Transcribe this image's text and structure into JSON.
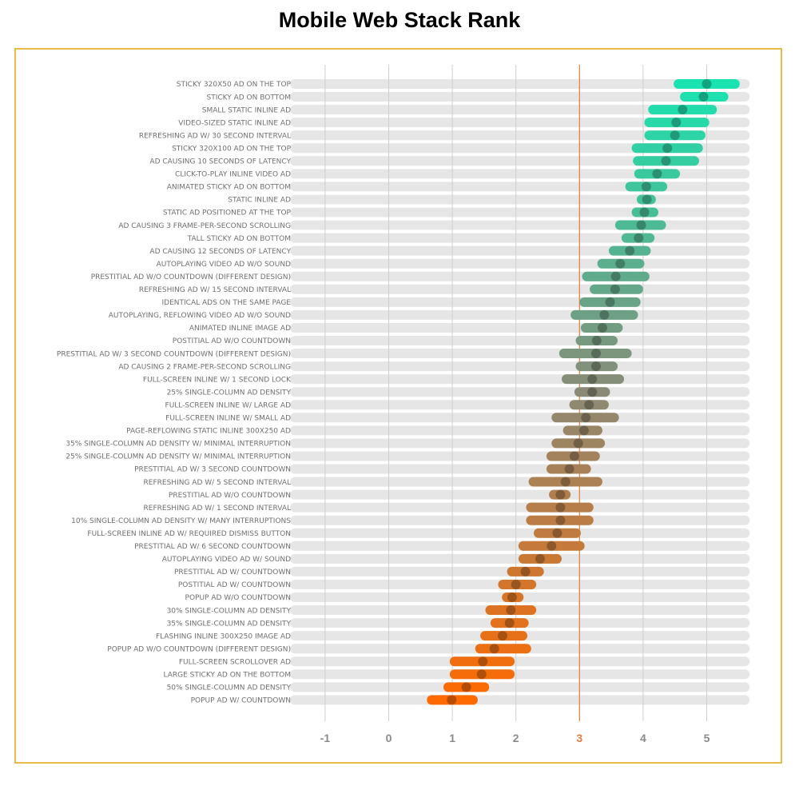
{
  "chart_data": {
    "type": "dot-range",
    "title": "Mobile Web Stack Rank",
    "xlabel": "",
    "ylabel": "",
    "xlim": [
      -1.4,
      5.6
    ],
    "x_ticks": [
      -1,
      0,
      1,
      2,
      3,
      4,
      5
    ],
    "highlight_tick": 3,
    "grid": true,
    "colors": {
      "high": "#19e3b0",
      "mid": "#8a8a76",
      "low": "#ff6a00",
      "track": "#e6e6e6",
      "frame": "#e9b949",
      "reference_line": "#e57c3c"
    },
    "categories": [
      "STICKY 320X50 AD ON THE TOP",
      "STICKY AD ON BOTTOM",
      "SMALL STATIC INLINE AD",
      "VIDEO-SIZED STATIC INLINE AD",
      "REFRESHING AD W/ 30 SECOND INTERVAL",
      "STICKY 320X100 AD ON THE TOP",
      "AD CAUSING 10 SECONDS OF LATENCY",
      "CLICK-TO-PLAY INLINE VIDEO AD",
      "ANIMATED STICKY AD ON BOTTOM",
      "STATIC INLINE AD",
      "STATIC AD POSITIONED AT THE TOP",
      "AD CAUSING 3 FRAME-PER-SECOND SCROLLING",
      "TALL STICKY AD ON BOTTOM",
      "AD CAUSING 12 SECONDS OF LATENCY",
      "AUTOPLAYING VIDEO AD W/O SOUND",
      "PRESTITIAL AD W/O COUNTDOWN (DIFFERENT DESIGN)",
      "REFRESHING AD W/ 15 SECOND INTERVAL",
      "IDENTICAL ADS ON THE SAME PAGE",
      "AUTOPLAYING, REFLOWING VIDEO AD W/O SOUND",
      "ANIMATED INLINE IMAGE AD",
      "POSTITIAL AD W/O COUNTDOWN",
      "PRESTITIAL AD W/ 3 SECOND COUNTDOWN (DIFFERENT DESIGN)",
      "AD CAUSING 2 FRAME-PER-SECOND SCROLLING",
      "FULL-SCREEN INLINE W/ 1 SECOND LOCK",
      "25% SINGLE-COLUMN AD DENSITY",
      "FULL-SCREEN INLINE W/ LARGE AD",
      "FULL-SCREEN INLINE W/ SMALL AD",
      "PAGE-REFLOWING STATIC INLINE 300X250 AD",
      "35% SINGLE-COLUMN AD DENSITY W/ MINIMAL INTERRUPTION",
      "25% SINGLE-COLUMN AD DENSITY W/ MINIMAL INTERRUPTION",
      "PRESTITIAL AD W/ 3 SECOND COUNTDOWN",
      "REFRESHING AD W/ 5 SECOND INTERVAL",
      "PRESTITIAL AD W/O COUNTDOWN",
      "REFRESHING AD W/ 1 SECOND INTERVAL",
      "10% SINGLE-COLUMN AD DENSITY W/ MANY INTERRUPTIONS",
      "FULL-SCREEN INLINE AD W/ REQUIRED DISMISS BUTTON",
      "PRESTITIAL AD W/ 6 SECOND COUNTDOWN",
      "AUTOPLAYING VIDEO AD W/ SOUND",
      "PRESTITIAL AD W/ COUNTDOWN",
      "POSTITIAL AD W/ COUNTDOWN",
      "POPUP AD W/O COUNTDOWN",
      "30% SINGLE-COLUMN AD DENSITY",
      "35% SINGLE-COLUMN AD DENSITY",
      "FLASHING INLINE 300X250 IMAGE AD",
      "POPUP AD W/O COUNTDOWN (DIFFERENT DESIGN)",
      "FULL-SCREEN SCROLLOVER AD",
      "LARGE STICKY AD ON THE BOTTOM",
      "50% SINGLE-COLUMN AD DENSITY",
      "POPUP AD W/ COUNTDOWN"
    ],
    "values": [
      5.0,
      4.95,
      4.62,
      4.52,
      4.5,
      4.38,
      4.36,
      4.22,
      4.05,
      4.06,
      4.02,
      3.97,
      3.93,
      3.79,
      3.64,
      3.57,
      3.56,
      3.48,
      3.39,
      3.36,
      3.27,
      3.26,
      3.26,
      3.2,
      3.2,
      3.15,
      3.1,
      3.07,
      2.98,
      2.92,
      2.84,
      2.78,
      2.7,
      2.7,
      2.7,
      2.65,
      2.56,
      2.38,
      2.15,
      2.0,
      1.94,
      1.92,
      1.9,
      1.79,
      1.66,
      1.48,
      1.46,
      1.22,
      0.99
    ],
    "ranges": [
      [
        4.48,
        5.52
      ],
      [
        4.58,
        5.34
      ],
      [
        4.08,
        5.16
      ],
      [
        4.02,
        5.04
      ],
      [
        4.02,
        4.98
      ],
      [
        3.82,
        4.94
      ],
      [
        3.84,
        4.88
      ],
      [
        3.86,
        4.58
      ],
      [
        3.72,
        4.38
      ],
      [
        3.9,
        4.2
      ],
      [
        3.82,
        4.24
      ],
      [
        3.56,
        4.36
      ],
      [
        3.66,
        4.18
      ],
      [
        3.46,
        4.12
      ],
      [
        3.28,
        4.02
      ],
      [
        3.04,
        4.1
      ],
      [
        3.16,
        4.0
      ],
      [
        3.0,
        3.96
      ],
      [
        2.86,
        3.92
      ],
      [
        3.02,
        3.68
      ],
      [
        2.94,
        3.6
      ],
      [
        2.68,
        3.82
      ],
      [
        2.94,
        3.6
      ],
      [
        2.72,
        3.7
      ],
      [
        2.92,
        3.48
      ],
      [
        2.84,
        3.46
      ],
      [
        2.56,
        3.62
      ],
      [
        2.74,
        3.36
      ],
      [
        2.56,
        3.4
      ],
      [
        2.48,
        3.32
      ],
      [
        2.48,
        3.18
      ],
      [
        2.2,
        3.36
      ],
      [
        2.52,
        2.86
      ],
      [
        2.16,
        3.22
      ],
      [
        2.16,
        3.22
      ],
      [
        2.28,
        3.02
      ],
      [
        2.04,
        3.08
      ],
      [
        2.04,
        2.72
      ],
      [
        1.86,
        2.44
      ],
      [
        1.72,
        2.32
      ],
      [
        1.78,
        2.12
      ],
      [
        1.52,
        2.32
      ],
      [
        1.6,
        2.2
      ],
      [
        1.44,
        2.18
      ],
      [
        1.36,
        2.24
      ],
      [
        0.96,
        1.98
      ],
      [
        0.96,
        1.98
      ],
      [
        0.86,
        1.58
      ],
      [
        0.6,
        1.4
      ]
    ]
  }
}
